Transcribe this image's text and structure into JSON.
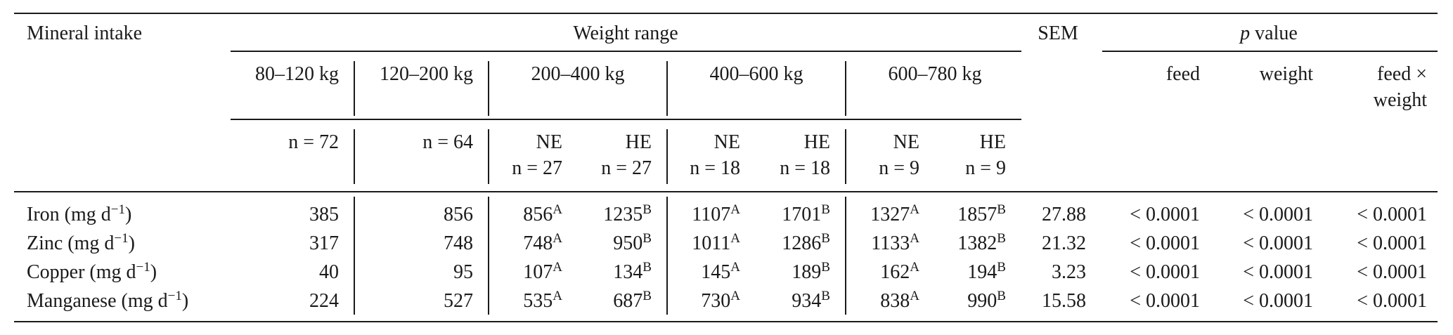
{
  "table": {
    "stub_header": "Mineral intake",
    "weight_range_label": "Weight range",
    "sem_label": "SEM",
    "p_label_italic": "p",
    "p_label_rest": " value",
    "groups": [
      {
        "range": "80–120 kg",
        "n": "n = 72"
      },
      {
        "range": "120–200 kg",
        "n": "n = 64"
      },
      {
        "range": "200–400 kg",
        "ne": "NE",
        "he": "HE",
        "n_ne": "n = 27",
        "n_he": "n = 27"
      },
      {
        "range": "400–600 kg",
        "ne": "NE",
        "he": "HE",
        "n_ne": "n = 18",
        "n_he": "n = 18"
      },
      {
        "range": "600–780 kg",
        "ne": "NE",
        "he": "HE",
        "n_ne": "n = 9",
        "n_he": "n = 9"
      }
    ],
    "p_columns": [
      "feed",
      "weight",
      "feed ×",
      "weight"
    ],
    "rows": [
      {
        "name": "Iron (mg d",
        "exp": "−1",
        "close": ")",
        "v1": "385",
        "v2": "856",
        "v3": "856",
        "s3": "A",
        "v4": "1235",
        "s4": "B",
        "v5": "1107",
        "s5": "A",
        "v6": "1701",
        "s6": "B",
        "v7": "1327",
        "s7": "A",
        "v8": "1857",
        "s8": "B",
        "sem": "27.88",
        "p1": "< 0.0001",
        "p2": "< 0.0001",
        "p3": "< 0.0001"
      },
      {
        "name": "Zinc (mg d",
        "exp": "−1",
        "close": ")",
        "v1": "317",
        "v2": "748",
        "v3": "748",
        "s3": "A",
        "v4": "950",
        "s4": "B",
        "v5": "1011",
        "s5": "A",
        "v6": "1286",
        "s6": "B",
        "v7": "1133",
        "s7": "A",
        "v8": "1382",
        "s8": "B",
        "sem": "21.32",
        "p1": "< 0.0001",
        "p2": "< 0.0001",
        "p3": "< 0.0001"
      },
      {
        "name": "Copper (mg d",
        "exp": "−1",
        "close": ")",
        "v1": "40",
        "v2": "95",
        "v3": "107",
        "s3": "A",
        "v4": "134",
        "s4": "B",
        "v5": "145",
        "s5": "A",
        "v6": "189",
        "s6": "B",
        "v7": "162",
        "s7": "A",
        "v8": "194",
        "s8": "B",
        "sem": "3.23",
        "p1": "< 0.0001",
        "p2": "< 0.0001",
        "p3": "< 0.0001"
      },
      {
        "name": "Manganese (mg d",
        "exp": "−1",
        "close": ")",
        "v1": "224",
        "v2": "527",
        "v3": "535",
        "s3": "A",
        "v4": "687",
        "s4": "B",
        "v5": "730",
        "s5": "A",
        "v6": "934",
        "s6": "B",
        "v7": "838",
        "s7": "A",
        "v8": "990",
        "s8": "B",
        "sem": "15.58",
        "p1": "< 0.0001",
        "p2": "< 0.0001",
        "p3": "< 0.0001"
      }
    ]
  }
}
